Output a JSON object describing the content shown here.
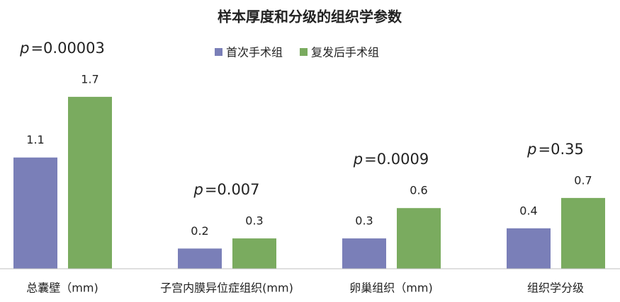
{
  "chart_data": {
    "type": "bar",
    "title": "样本厚度和分级的组织学参数",
    "categories": [
      "总囊壁（mm)",
      "子宫内膜异位症组织(mm)",
      "卵巢组织（mm)",
      "组织学分级"
    ],
    "series": [
      {
        "name": "首次手术组",
        "color": "#7a7fb8",
        "values": [
          1.1,
          0.2,
          0.3,
          0.4
        ]
      },
      {
        "name": "复发后手术组",
        "color": "#7aab5f",
        "values": [
          1.7,
          0.3,
          0.6,
          0.7
        ]
      }
    ],
    "annotations": [
      {
        "symbol": "p",
        "text": "=0.00003"
      },
      {
        "symbol": "p",
        "text": "=0.007"
      },
      {
        "symbol": "p",
        "text": "=0.0009"
      },
      {
        "symbol": "p",
        "text": "=0.35"
      }
    ],
    "legend": "top"
  }
}
